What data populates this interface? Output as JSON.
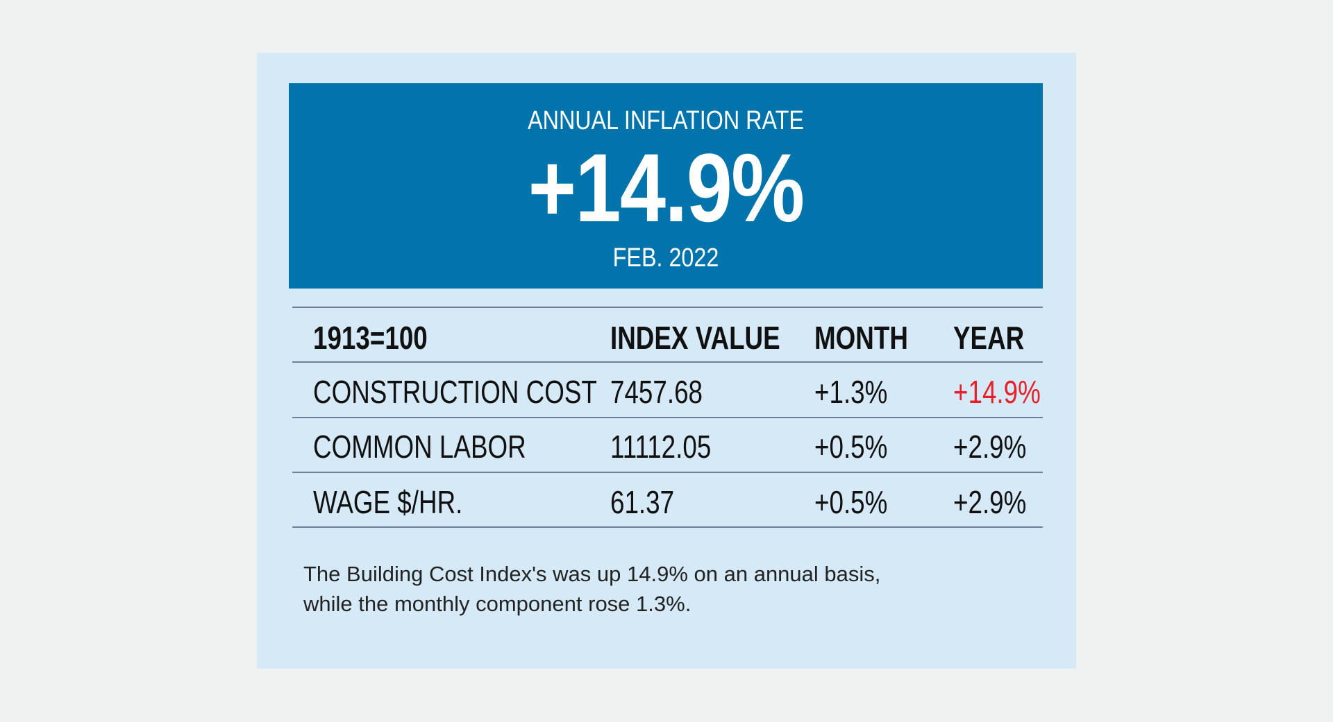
{
  "hero": {
    "title": "ANNUAL INFLATION RATE",
    "value": "+14.9%",
    "date": "FEB. 2022"
  },
  "table": {
    "headers": [
      "1913=100",
      "INDEX VALUE",
      "MONTH",
      "YEAR"
    ],
    "rows": [
      [
        "CONSTRUCTION COST",
        "7457.68",
        "+1.3%",
        "+14.9%"
      ],
      [
        "COMMON LABOR",
        "11112.05",
        "+0.5%",
        "+2.9%"
      ],
      [
        "WAGE $/HR.",
        "61.37",
        "+0.5%",
        "+2.9%"
      ]
    ]
  },
  "caption": {
    "line1": "The Building Cost Index's was up 14.9% on an annual basis,",
    "line2": "while the monthly component rose 1.3%."
  },
  "colors": {
    "header_bg": "#0374ab",
    "card_bg": "#d5e9f7",
    "highlight": "#e8202a"
  }
}
